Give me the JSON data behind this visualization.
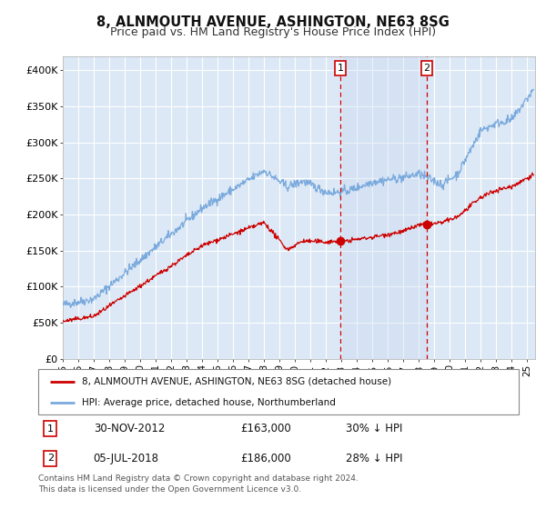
{
  "title": "8, ALNMOUTH AVENUE, ASHINGTON, NE63 8SG",
  "subtitle": "Price paid vs. HM Land Registry's House Price Index (HPI)",
  "background_color": "#ffffff",
  "plot_bg_color": "#dce8f5",
  "grid_color": "#ffffff",
  "red_line_color": "#cc0000",
  "blue_line_color": "#7aaadd",
  "shade_color": "#dce8f5",
  "ylim": [
    0,
    420000
  ],
  "xlim_start": 1995.0,
  "xlim_end": 2025.5,
  "yticks": [
    0,
    50000,
    100000,
    150000,
    200000,
    250000,
    300000,
    350000,
    400000
  ],
  "ytick_labels": [
    "£0",
    "£50K",
    "£100K",
    "£150K",
    "£200K",
    "£250K",
    "£300K",
    "£350K",
    "£400K"
  ],
  "purchase1_date": 2012.92,
  "purchase1_price": 163000,
  "purchase2_date": 2018.51,
  "purchase2_price": 186000,
  "legend_line1": "8, ALNMOUTH AVENUE, ASHINGTON, NE63 8SG (detached house)",
  "legend_line2": "HPI: Average price, detached house, Northumberland",
  "table_row1": [
    "1",
    "30-NOV-2012",
    "£163,000",
    "30% ↓ HPI"
  ],
  "table_row2": [
    "2",
    "05-JUL-2018",
    "£186,000",
    "28% ↓ HPI"
  ],
  "footer": "Contains HM Land Registry data © Crown copyright and database right 2024.\nThis data is licensed under the Open Government Licence v3.0.",
  "title_fontsize": 10.5,
  "subtitle_fontsize": 9
}
